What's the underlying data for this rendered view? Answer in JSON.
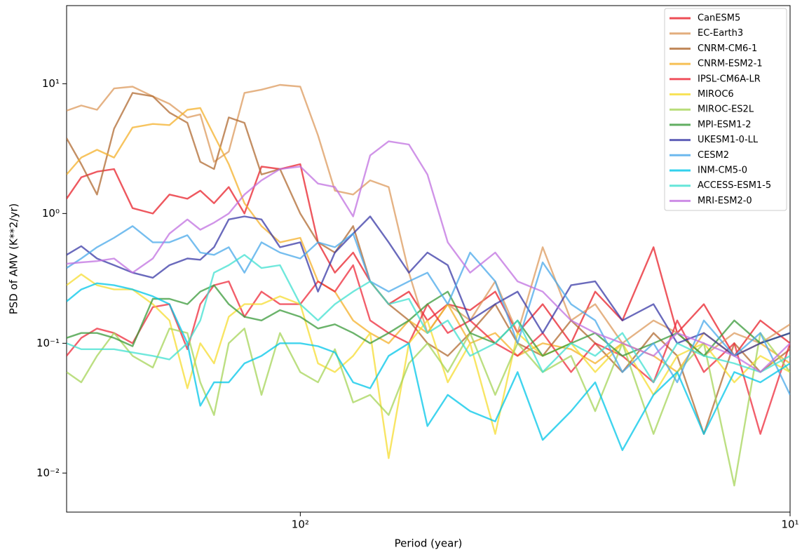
{
  "chart_data": {
    "type": "line",
    "xlabel": "Period (year)",
    "ylabel": "PSD of AMV (K**2/yr)",
    "xscale": "log",
    "yscale": "log",
    "legend": "upper right",
    "xlim": [
      300,
      10
    ],
    "ylim": [
      0.005,
      40
    ],
    "xticks": [
      {
        "value": 100,
        "label": "10²"
      },
      {
        "value": 10,
        "label": "10¹"
      }
    ],
    "yticks": [
      {
        "value": 0.01,
        "label": "10⁻²"
      },
      {
        "value": 0.1,
        "label": "10⁻¹"
      },
      {
        "value": 1,
        "label": "10⁰"
      },
      {
        "value": 10,
        "label": "10¹"
      }
    ],
    "x": [
      300,
      280,
      260,
      240,
      220,
      200,
      185,
      170,
      160,
      150,
      140,
      130,
      120,
      110,
      100,
      92,
      85,
      78,
      72,
      66,
      60,
      55,
      50,
      45,
      40,
      36,
      32,
      28,
      25,
      22,
      19,
      17,
      15,
      13,
      11.5,
      10
    ],
    "series": [
      {
        "name": "CanESM5",
        "color": "#e8202a",
        "values": [
          1.3,
          1.9,
          2.1,
          2.2,
          1.1,
          1.0,
          1.4,
          1.3,
          1.5,
          1.2,
          1.6,
          1.0,
          2.3,
          2.2,
          2.4,
          0.6,
          0.35,
          0.5,
          0.3,
          0.2,
          0.25,
          0.15,
          0.2,
          0.18,
          0.25,
          0.12,
          0.2,
          0.1,
          0.25,
          0.15,
          0.55,
          0.12,
          0.2,
          0.08,
          0.15,
          0.1
        ]
      },
      {
        "name": "EC-Earth3",
        "color": "#dc9a5c",
        "values": [
          6.2,
          6.8,
          6.3,
          9.2,
          9.5,
          8.0,
          7.0,
          5.5,
          5.8,
          2.5,
          3.0,
          8.5,
          9.0,
          9.8,
          9.5,
          4.0,
          1.5,
          1.4,
          1.8,
          1.6,
          0.35,
          0.12,
          0.2,
          0.15,
          0.3,
          0.12,
          0.55,
          0.15,
          0.2,
          0.1,
          0.15,
          0.12,
          0.08,
          0.12,
          0.1,
          0.14
        ]
      },
      {
        "name": "CNRM-CM6-1",
        "color": "#b06a30",
        "values": [
          3.8,
          2.4,
          1.4,
          4.5,
          8.5,
          8.0,
          6.0,
          5.0,
          2.5,
          2.2,
          5.5,
          5.0,
          2.0,
          2.2,
          1.0,
          0.6,
          0.5,
          0.8,
          0.3,
          0.2,
          0.15,
          0.1,
          0.08,
          0.12,
          0.2,
          0.1,
          0.08,
          0.15,
          0.1,
          0.06,
          0.12,
          0.08,
          0.02,
          0.1,
          0.06,
          0.09
        ]
      },
      {
        "name": "CNRM-ESM2-1",
        "color": "#f4b02a",
        "values": [
          2.0,
          2.7,
          3.1,
          2.7,
          4.6,
          4.9,
          4.8,
          6.3,
          6.5,
          4.0,
          2.4,
          1.2,
          0.8,
          0.6,
          0.65,
          0.3,
          0.25,
          0.15,
          0.12,
          0.1,
          0.15,
          0.12,
          0.2,
          0.1,
          0.12,
          0.08,
          0.1,
          0.09,
          0.07,
          0.1,
          0.08,
          0.06,
          0.12,
          0.08,
          0.1,
          0.07
        ]
      },
      {
        "name": "IPSL-CM6A-LR",
        "color": "#ee2a3a",
        "values": [
          0.08,
          0.11,
          0.13,
          0.12,
          0.1,
          0.19,
          0.2,
          0.09,
          0.2,
          0.28,
          0.3,
          0.16,
          0.25,
          0.2,
          0.2,
          0.3,
          0.25,
          0.4,
          0.15,
          0.12,
          0.1,
          0.2,
          0.12,
          0.15,
          0.1,
          0.08,
          0.12,
          0.06,
          0.1,
          0.08,
          0.05,
          0.15,
          0.06,
          0.1,
          0.02,
          0.1
        ]
      },
      {
        "name": "MIROC6",
        "color": "#f6dc30",
        "values": [
          0.28,
          0.34,
          0.28,
          0.26,
          0.26,
          0.2,
          0.15,
          0.045,
          0.1,
          0.07,
          0.16,
          0.2,
          0.2,
          0.23,
          0.2,
          0.07,
          0.06,
          0.08,
          0.12,
          0.013,
          0.1,
          0.15,
          0.05,
          0.1,
          0.02,
          0.12,
          0.08,
          0.1,
          0.06,
          0.1,
          0.04,
          0.08,
          0.1,
          0.05,
          0.08,
          0.06
        ]
      },
      {
        "name": "MIROC-ES2L",
        "color": "#a6d458",
        "values": [
          0.06,
          0.05,
          0.08,
          0.12,
          0.08,
          0.065,
          0.13,
          0.12,
          0.05,
          0.028,
          0.1,
          0.13,
          0.04,
          0.12,
          0.06,
          0.05,
          0.09,
          0.035,
          0.04,
          0.028,
          0.07,
          0.1,
          0.06,
          0.12,
          0.04,
          0.1,
          0.06,
          0.08,
          0.03,
          0.1,
          0.02,
          0.06,
          0.1,
          0.008,
          0.12,
          0.06
        ]
      },
      {
        "name": "MPI-ESM1-2",
        "color": "#3a9a3a",
        "values": [
          0.11,
          0.12,
          0.12,
          0.11,
          0.095,
          0.22,
          0.22,
          0.2,
          0.25,
          0.28,
          0.2,
          0.16,
          0.15,
          0.18,
          0.16,
          0.13,
          0.14,
          0.12,
          0.1,
          0.12,
          0.15,
          0.2,
          0.25,
          0.12,
          0.1,
          0.15,
          0.08,
          0.1,
          0.12,
          0.08,
          0.1,
          0.12,
          0.08,
          0.15,
          0.1,
          0.12
        ]
      },
      {
        "name": "UKESM1-0-LL",
        "color": "#3838a6",
        "values": [
          0.48,
          0.56,
          0.45,
          0.4,
          0.35,
          0.32,
          0.4,
          0.45,
          0.44,
          0.55,
          0.9,
          0.95,
          0.9,
          0.55,
          0.6,
          0.25,
          0.5,
          0.7,
          0.95,
          0.6,
          0.35,
          0.5,
          0.4,
          0.15,
          0.2,
          0.25,
          0.12,
          0.28,
          0.3,
          0.15,
          0.2,
          0.1,
          0.12,
          0.08,
          0.1,
          0.12
        ]
      },
      {
        "name": "CESM2",
        "color": "#48a8ea",
        "values": [
          0.38,
          0.45,
          0.55,
          0.65,
          0.8,
          0.6,
          0.6,
          0.68,
          0.5,
          0.48,
          0.55,
          0.35,
          0.6,
          0.5,
          0.45,
          0.6,
          0.55,
          0.7,
          0.3,
          0.25,
          0.3,
          0.35,
          0.2,
          0.5,
          0.3,
          0.1,
          0.42,
          0.2,
          0.15,
          0.06,
          0.1,
          0.05,
          0.15,
          0.08,
          0.12,
          0.04
        ]
      },
      {
        "name": "INM-CM5-0",
        "color": "#00c6e8",
        "values": [
          0.21,
          0.26,
          0.29,
          0.28,
          0.26,
          0.23,
          0.2,
          0.1,
          0.033,
          0.05,
          0.05,
          0.07,
          0.08,
          0.1,
          0.1,
          0.095,
          0.085,
          0.05,
          0.045,
          0.08,
          0.1,
          0.023,
          0.04,
          0.03,
          0.025,
          0.06,
          0.018,
          0.03,
          0.05,
          0.015,
          0.04,
          0.06,
          0.02,
          0.06,
          0.05,
          0.07
        ]
      },
      {
        "name": "ACCESS-ESM1-5",
        "color": "#40e0d0",
        "values": [
          0.1,
          0.09,
          0.09,
          0.09,
          0.085,
          0.08,
          0.075,
          0.1,
          0.15,
          0.35,
          0.4,
          0.48,
          0.38,
          0.4,
          0.2,
          0.15,
          0.2,
          0.25,
          0.3,
          0.2,
          0.22,
          0.12,
          0.15,
          0.08,
          0.1,
          0.15,
          0.06,
          0.1,
          0.08,
          0.12,
          0.05,
          0.1,
          0.08,
          0.07,
          0.06,
          0.08
        ]
      },
      {
        "name": "MRI-ESM2-0",
        "color": "#c070e0",
        "values": [
          0.41,
          0.42,
          0.43,
          0.45,
          0.35,
          0.45,
          0.7,
          0.9,
          0.75,
          0.85,
          1.0,
          1.4,
          1.8,
          2.2,
          2.3,
          1.7,
          1.6,
          0.95,
          2.8,
          3.6,
          3.4,
          2.0,
          0.6,
          0.35,
          0.5,
          0.3,
          0.25,
          0.15,
          0.12,
          0.1,
          0.08,
          0.12,
          0.1,
          0.08,
          0.06,
          0.1
        ]
      }
    ]
  }
}
